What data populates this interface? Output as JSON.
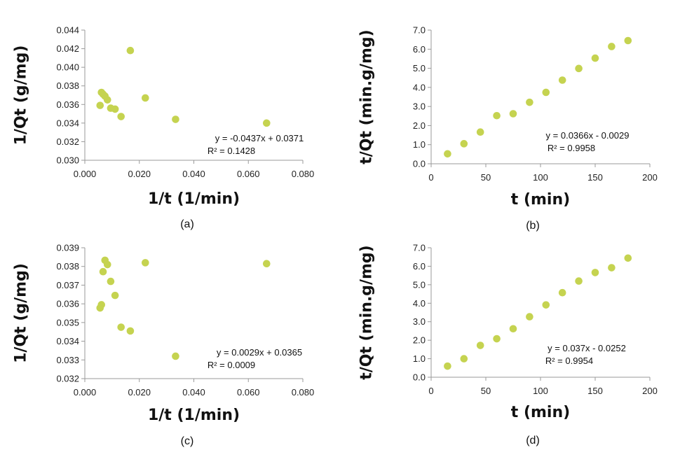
{
  "marker_color": "#c5d350",
  "chart_data": [
    {
      "type": "scatter",
      "panel_label": "(a)",
      "xlabel": "1/t (1/min)",
      "ylabel": "1/Qt (g/mg)",
      "xlim": [
        0.0,
        0.08
      ],
      "ylim": [
        0.03,
        0.044
      ],
      "xticks": [
        "0.000",
        "0.020",
        "0.040",
        "0.060",
        "0.080"
      ],
      "yticks": [
        "0.030",
        "0.032",
        "0.034",
        "0.036",
        "0.038",
        "0.040",
        "0.042",
        "0.044"
      ],
      "grid": false,
      "points": [
        [
          0.0667,
          0.034
        ],
        [
          0.0333,
          0.0344
        ],
        [
          0.0222,
          0.0367
        ],
        [
          0.0167,
          0.0418
        ],
        [
          0.0133,
          0.0347
        ],
        [
          0.0111,
          0.0355
        ],
        [
          0.0095,
          0.0356
        ],
        [
          0.0083,
          0.0365
        ],
        [
          0.0074,
          0.0369
        ],
        [
          0.0067,
          0.0371
        ],
        [
          0.0061,
          0.0373
        ],
        [
          0.0056,
          0.0359
        ]
      ],
      "equation": "y = -0.0437x + 0.0371",
      "r2": "R² = 0.1428"
    },
    {
      "type": "scatter",
      "panel_label": "(b)",
      "xlabel": "t (min)",
      "ylabel": "t/Qt (min.g/mg)",
      "xlim": [
        0,
        200
      ],
      "ylim": [
        0.0,
        7.0
      ],
      "xticks": [
        "0",
        "50",
        "100",
        "150",
        "200"
      ],
      "yticks": [
        "0.0",
        "1.0",
        "2.0",
        "3.0",
        "4.0",
        "5.0",
        "6.0",
        "7.0"
      ],
      "grid": false,
      "points": [
        [
          15,
          0.52
        ],
        [
          30,
          1.05
        ],
        [
          45,
          1.66
        ],
        [
          60,
          2.52
        ],
        [
          75,
          2.62
        ],
        [
          90,
          3.22
        ],
        [
          105,
          3.74
        ],
        [
          120,
          4.38
        ],
        [
          135,
          4.99
        ],
        [
          150,
          5.53
        ],
        [
          165,
          6.14
        ],
        [
          180,
          6.45
        ]
      ],
      "equation": "y = 0.0366x - 0.0029",
      "r2": "R² = 0.9958"
    },
    {
      "type": "scatter",
      "panel_label": "(c)",
      "xlabel": "1/t (1/min)",
      "ylabel": "1/Qt (g/mg)",
      "xlim": [
        0.0,
        0.08
      ],
      "ylim": [
        0.032,
        0.039
      ],
      "xticks": [
        "0.000",
        "0.020",
        "0.040",
        "0.060",
        "0.080"
      ],
      "yticks": [
        "0.032",
        "0.033",
        "0.034",
        "0.035",
        "0.036",
        "0.037",
        "0.038",
        "0.039"
      ],
      "grid": false,
      "points": [
        [
          0.0667,
          0.03815
        ],
        [
          0.0333,
          0.0332
        ],
        [
          0.0222,
          0.0382
        ],
        [
          0.0167,
          0.03455
        ],
        [
          0.0133,
          0.03475
        ],
        [
          0.0111,
          0.03645
        ],
        [
          0.0095,
          0.0372
        ],
        [
          0.0083,
          0.0381
        ],
        [
          0.0074,
          0.03833
        ],
        [
          0.0067,
          0.03772
        ],
        [
          0.0061,
          0.03595
        ],
        [
          0.0056,
          0.03578
        ]
      ],
      "equation": "y = 0.0029x + 0.0365",
      "r2": "R² = 0.0009"
    },
    {
      "type": "scatter",
      "panel_label": "(d)",
      "xlabel": "t (min)",
      "ylabel": "t/Qt (min.g/mg)",
      "xlim": [
        0,
        200
      ],
      "ylim": [
        0.0,
        7.0
      ],
      "xticks": [
        "0",
        "50",
        "100",
        "150",
        "200"
      ],
      "yticks": [
        "0.0",
        "1.0",
        "2.0",
        "3.0",
        "4.0",
        "5.0",
        "6.0",
        "7.0"
      ],
      "grid": false,
      "points": [
        [
          15,
          0.6
        ],
        [
          30,
          1.0
        ],
        [
          45,
          1.72
        ],
        [
          60,
          2.08
        ],
        [
          75,
          2.62
        ],
        [
          90,
          3.27
        ],
        [
          105,
          3.91
        ],
        [
          120,
          4.57
        ],
        [
          135,
          5.2
        ],
        [
          150,
          5.66
        ],
        [
          165,
          5.92
        ],
        [
          180,
          6.44
        ]
      ],
      "equation": "y = 0.037x - 0.0252",
      "r2": "R² = 0.9954"
    }
  ]
}
